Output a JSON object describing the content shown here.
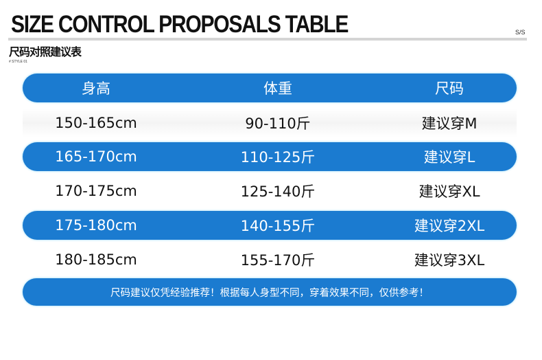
{
  "header": {
    "title": "SIZE CONTROL PROPOSALS TABLE",
    "season": "S/S",
    "subtitle": "尺码对照建议表",
    "style_label": "# STYLE 01"
  },
  "table": {
    "columns": [
      "身高",
      "体重",
      "尺码"
    ],
    "rows": [
      [
        "150-165cm",
        "90-110斤",
        "建议穿M"
      ],
      [
        "165-170cm",
        "110-125斤",
        "建议穿L"
      ],
      [
        "170-175cm",
        "125-140斤",
        "建议穿XL"
      ],
      [
        "175-180cm",
        "140-155斤",
        "建议穿2XL"
      ],
      [
        "180-185cm",
        "155-170斤",
        "建议穿3XL"
      ]
    ]
  },
  "footer_note": "尺码建议仅凭经验推荐！根据每人身型不同，穿着效果不同，仅供参考！",
  "colors": {
    "accent": "#1b7bd0"
  }
}
